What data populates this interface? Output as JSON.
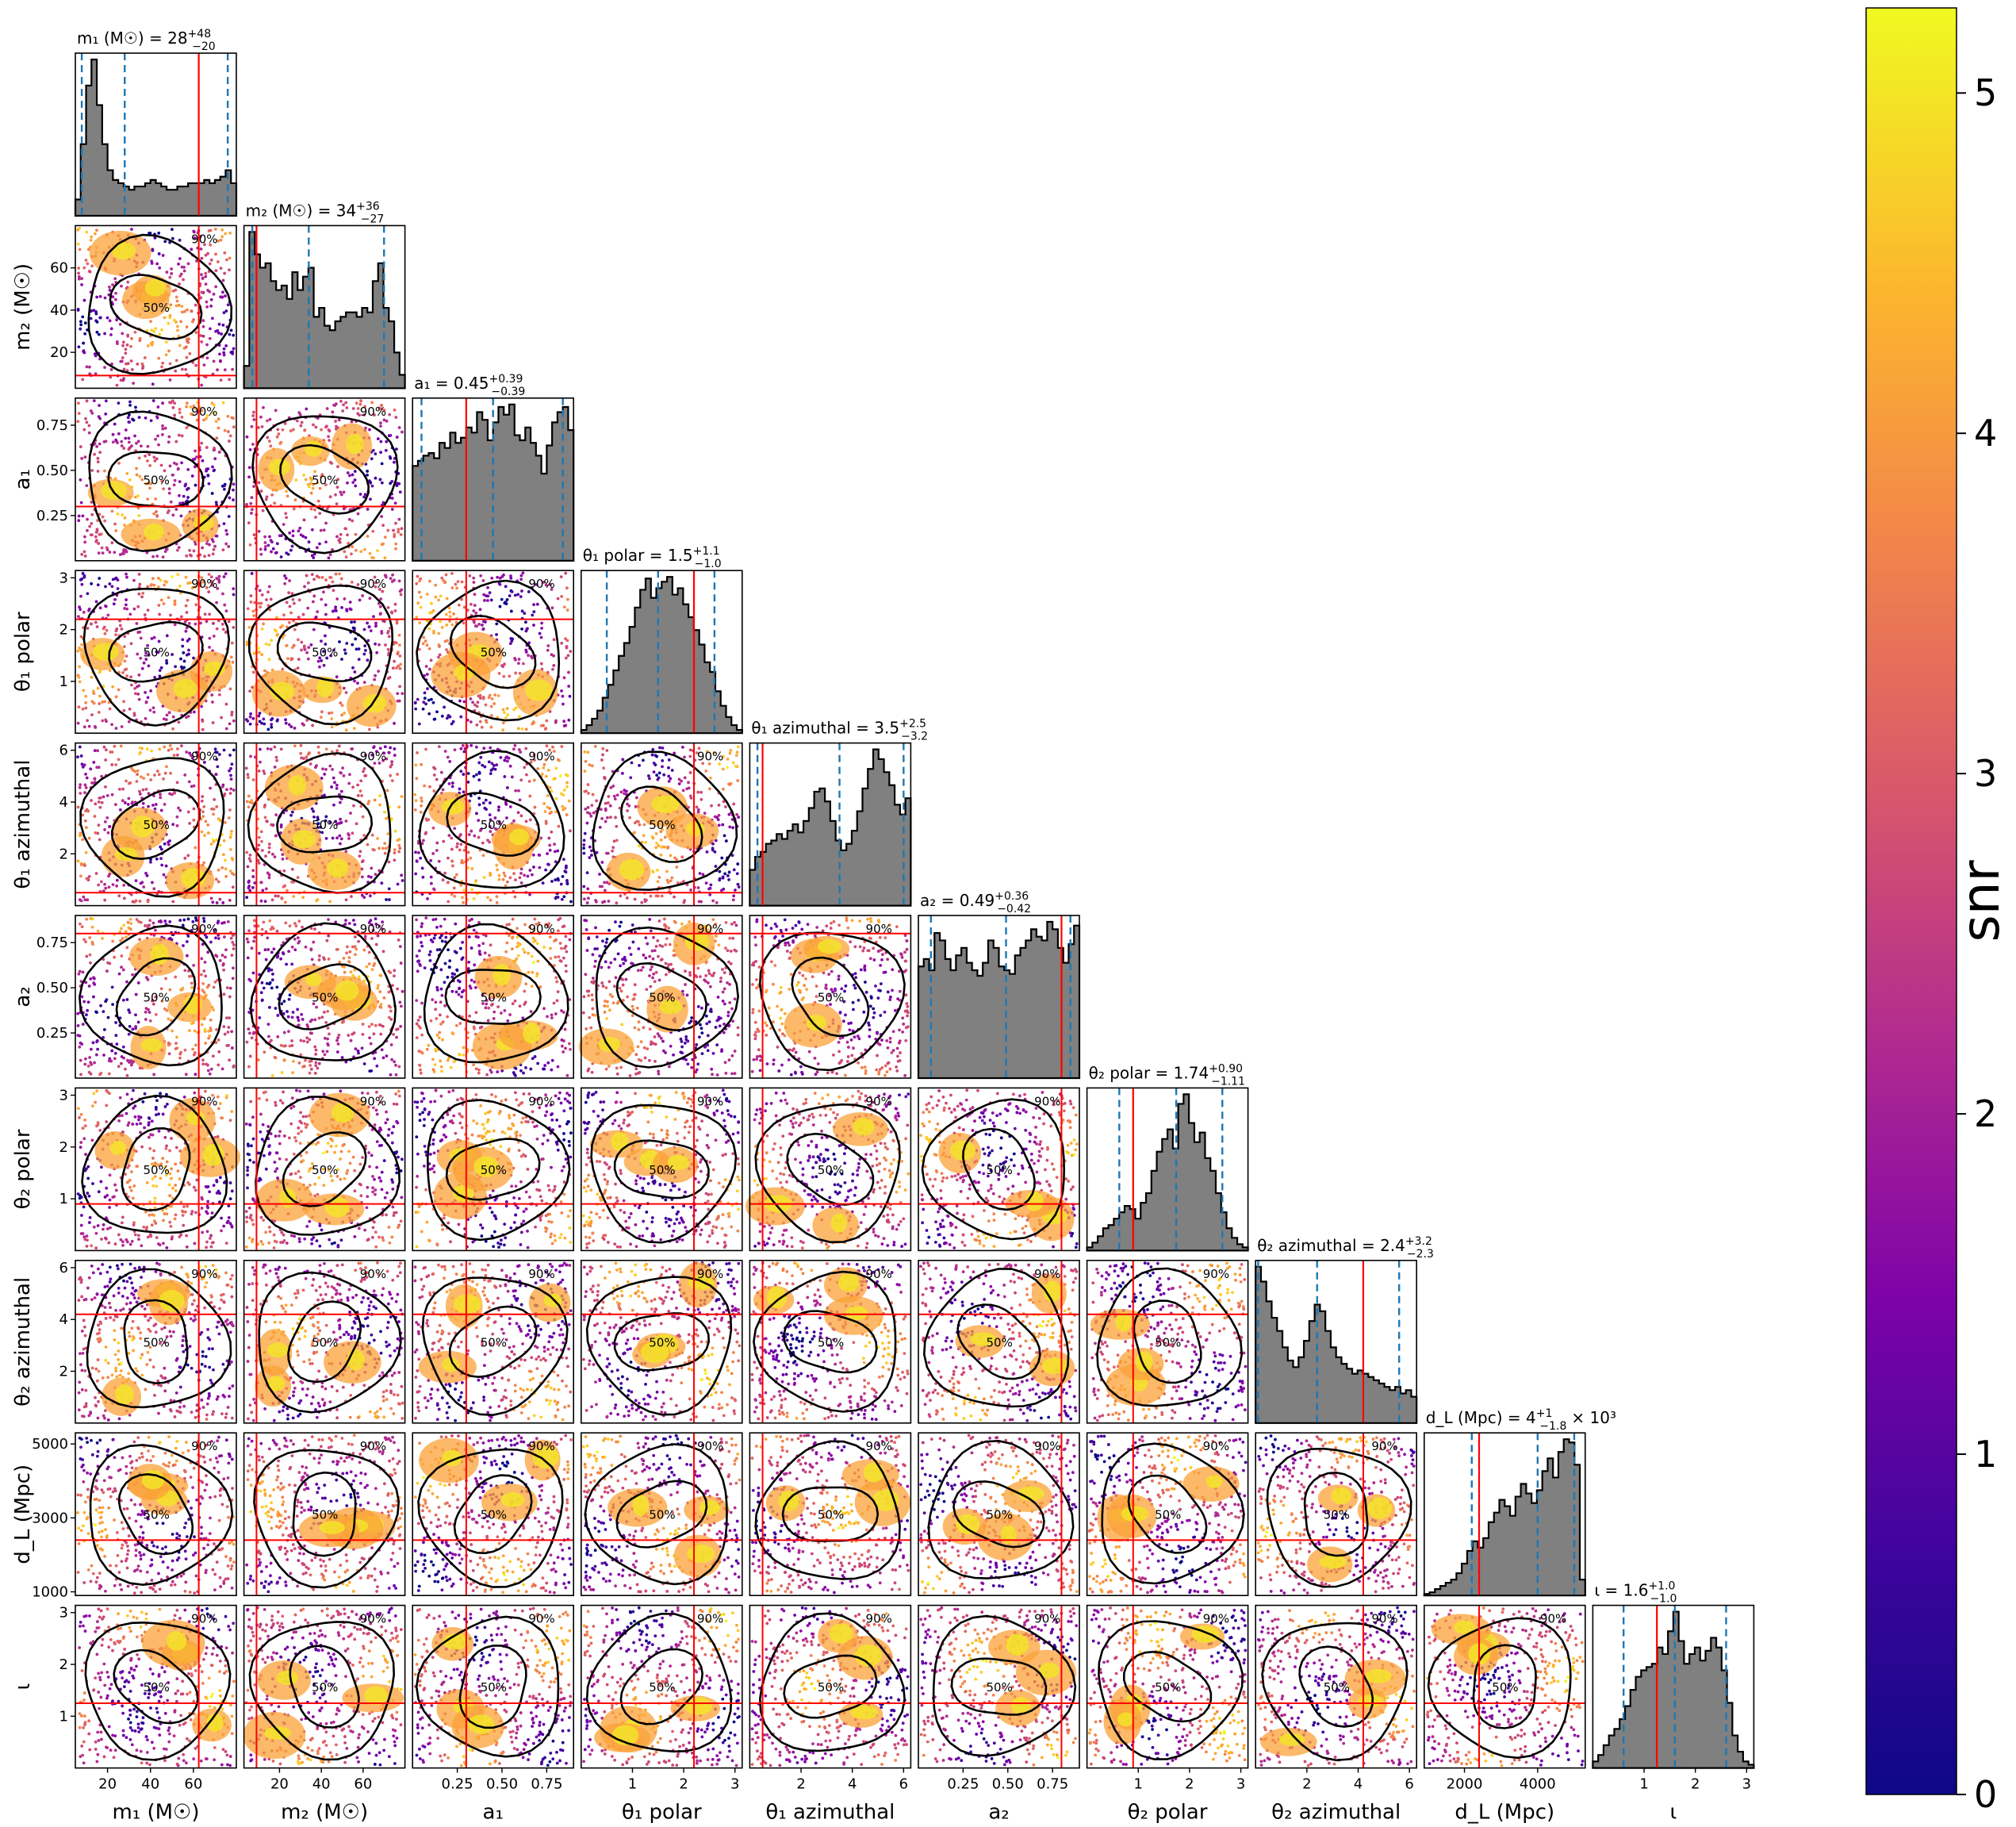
{
  "chart_data": {
    "type": "corner",
    "description_colorbar": "snr",
    "colorbar": {
      "label": "snr",
      "ticks": [
        0,
        1,
        2,
        3,
        4,
        5
      ],
      "range": [
        0,
        5.25
      ],
      "colormap": [
        "#0d0887",
        "#5302a3",
        "#8b0aa5",
        "#b83289",
        "#db5c68",
        "#f48849",
        "#febd2a",
        "#f0f921"
      ]
    },
    "colors": {
      "histogram_fill": "#808080",
      "histogram_edge": "#000000",
      "quantile_line": "#1f77b4",
      "truth_line": "#ff0000",
      "contour": "#000000"
    },
    "contour_labels": [
      "50%",
      "90%"
    ],
    "parameters": [
      {
        "key": "m1",
        "axis_label": "m₁ (M☉)",
        "title": "m₁ (M☉) = 28",
        "title_sup": "+48",
        "title_sub": "−20",
        "range": [
          5,
          80
        ],
        "ticks": [
          20,
          40,
          60
        ],
        "tick_labels": [
          "20",
          "40",
          "60"
        ],
        "median": 28,
        "q_low": 8,
        "q_high": 76,
        "truth": 62.5,
        "hist": [
          5,
          22,
          40,
          48,
          34,
          22,
          14,
          11,
          10,
          9,
          8,
          9,
          9,
          10,
          11,
          10,
          9,
          8,
          8,
          9,
          9,
          10,
          10,
          10,
          11,
          10,
          11,
          12,
          14,
          10
        ]
      },
      {
        "key": "m2",
        "axis_label": "m₂ (M☉)",
        "title": "m₂ (M☉) = 34",
        "title_sup": "+36",
        "title_sub": "−27",
        "range": [
          3,
          80
        ],
        "ticks": [
          20,
          40,
          60
        ],
        "tick_labels": [
          "20",
          "40",
          "60"
        ],
        "median": 34,
        "q_low": 7,
        "q_high": 70,
        "truth": 9,
        "hist": [
          5,
          35,
          30,
          27,
          28,
          24,
          22,
          23,
          20,
          26,
          22,
          25,
          27,
          16,
          18,
          14,
          13,
          15,
          16,
          17,
          17,
          16,
          18,
          17,
          24,
          28,
          18,
          15,
          8,
          3
        ]
      },
      {
        "key": "a1",
        "axis_label": "a₁",
        "title": "a₁ = 0.45",
        "title_sup": "+0.39",
        "title_sub": "−0.39",
        "range": [
          0,
          0.9
        ],
        "ticks": [
          0.25,
          0.5,
          0.75
        ],
        "tick_labels": [
          "0.25",
          "0.50",
          "0.75"
        ],
        "median": 0.45,
        "q_low": 0.05,
        "q_high": 0.84,
        "truth": 0.3,
        "hist": [
          37,
          39,
          41,
          42,
          40,
          46,
          44,
          50,
          46,
          48,
          52,
          50,
          58,
          55,
          47,
          54,
          60,
          57,
          61,
          49,
          47,
          52,
          46,
          41,
          34,
          45,
          54,
          58,
          60,
          51
        ]
      },
      {
        "key": "theta1_polar",
        "axis_label": "θ₁ polar",
        "title": "θ₁ polar = 1.5",
        "title_sup": "+1.1",
        "title_sub": "−1.0",
        "range": [
          0,
          3.14
        ],
        "ticks": [
          1,
          2,
          3
        ],
        "tick_labels": [
          "1",
          "2",
          "3"
        ],
        "median": 1.5,
        "q_low": 0.5,
        "q_high": 2.6,
        "truth": 2.2,
        "hist": [
          2,
          5,
          9,
          14,
          22,
          30,
          39,
          48,
          56,
          66,
          78,
          89,
          96,
          84,
          90,
          94,
          97,
          86,
          90,
          80,
          72,
          64,
          55,
          44,
          38,
          26,
          17,
          10,
          5,
          2
        ]
      },
      {
        "key": "theta1_azimuthal",
        "axis_label": "θ₁ azimuthal",
        "title": "θ₁ azimuthal = 3.5",
        "title_sup": "+2.5",
        "title_sub": "−3.2",
        "range": [
          0,
          6.28
        ],
        "ticks": [
          2,
          4,
          6
        ],
        "tick_labels": [
          "2",
          "4",
          "6"
        ],
        "median": 3.5,
        "q_low": 0.3,
        "q_high": 6.0,
        "truth": 0.5,
        "hist": [
          22,
          30,
          33,
          38,
          40,
          44,
          41,
          46,
          50,
          45,
          52,
          60,
          70,
          72,
          64,
          52,
          40,
          34,
          38,
          46,
          58,
          72,
          84,
          96,
          90,
          82,
          74,
          62,
          56,
          66
        ]
      },
      {
        "key": "a2",
        "axis_label": "a₂",
        "title": "a₂ = 0.49",
        "title_sup": "+0.36",
        "title_sub": "−0.42",
        "range": [
          0,
          0.9
        ],
        "ticks": [
          0.25,
          0.5,
          0.75
        ],
        "tick_labels": [
          "0.25",
          "0.50",
          "0.75"
        ],
        "median": 0.49,
        "q_low": 0.07,
        "q_high": 0.85,
        "truth": 0.8,
        "hist": [
          60,
          64,
          58,
          78,
          74,
          64,
          58,
          66,
          70,
          62,
          58,
          55,
          62,
          74,
          70,
          60,
          58,
          56,
          66,
          70,
          74,
          80,
          76,
          74,
          84,
          80,
          70,
          62,
          72,
          82
        ]
      },
      {
        "key": "theta2_polar",
        "axis_label": "θ₂ polar",
        "title": "θ₂ polar = 1.74",
        "title_sup": "+0.90",
        "title_sub": "−1.11",
        "range": [
          0,
          3.14
        ],
        "ticks": [
          1,
          2,
          3
        ],
        "tick_labels": [
          "1",
          "2",
          "3"
        ],
        "median": 1.74,
        "q_low": 0.63,
        "q_high": 2.64,
        "truth": 0.9,
        "hist": [
          2,
          5,
          9,
          14,
          16,
          20,
          24,
          28,
          26,
          20,
          30,
          36,
          50,
          62,
          70,
          76,
          64,
          92,
          98,
          80,
          68,
          74,
          58,
          50,
          36,
          24,
          14,
          8,
          4,
          2
        ]
      },
      {
        "key": "theta2_azimuthal",
        "axis_label": "θ₂ azimuthal",
        "title": "θ₂ azimuthal = 2.4",
        "title_sup": "+3.2",
        "title_sub": "−2.3",
        "range": [
          0,
          6.28
        ],
        "ticks": [
          2,
          4,
          6
        ],
        "tick_labels": [
          "2",
          "4",
          "6"
        ],
        "median": 2.4,
        "q_low": 0.1,
        "q_high": 5.6,
        "truth": 4.2,
        "hist": [
          95,
          86,
          74,
          64,
          56,
          46,
          38,
          34,
          40,
          50,
          62,
          72,
          68,
          56,
          46,
          40,
          36,
          33,
          30,
          32,
          30,
          28,
          26,
          24,
          22,
          20,
          22,
          18,
          20,
          16
        ]
      },
      {
        "key": "dL",
        "axis_label": "d_L (Mpc)",
        "title": "d_L (Mpc) = 4",
        "title_sup": "+1",
        "title_sub": "−1.8",
        "title_suffix": "× 10³",
        "range": [
          900,
          5300
        ],
        "ticks": [
          2000,
          4000
        ],
        "tick_labels": [
          "2000",
          "4000"
        ],
        "y_ticks": [
          1000,
          3000,
          5000
        ],
        "y_tick_labels": [
          "1000",
          "3000",
          "5000"
        ],
        "median": 4000,
        "q_low": 2200,
        "q_high": 5000,
        "truth": 2400,
        "hist": [
          1,
          2,
          4,
          6,
          8,
          10,
          14,
          20,
          28,
          34,
          30,
          36,
          46,
          52,
          60,
          56,
          50,
          62,
          70,
          64,
          58,
          66,
          78,
          86,
          74,
          90,
          98,
          96,
          82,
          10
        ]
      },
      {
        "key": "iota",
        "axis_label": "ι",
        "title": "ι = 1.6",
        "title_sup": "+1.0",
        "title_sub": "−1.0",
        "range": [
          0,
          3.14
        ],
        "ticks": [
          1,
          2,
          3
        ],
        "tick_labels": [
          "1",
          "2",
          "3"
        ],
        "median": 1.6,
        "q_low": 0.6,
        "q_high": 2.6,
        "truth": 1.25,
        "hist": [
          4,
          8,
          14,
          20,
          24,
          30,
          38,
          48,
          56,
          60,
          62,
          64,
          74,
          70,
          84,
          96,
          78,
          64,
          70,
          74,
          66,
          72,
          80,
          74,
          60,
          40,
          20,
          10,
          4,
          2
        ]
      }
    ]
  }
}
